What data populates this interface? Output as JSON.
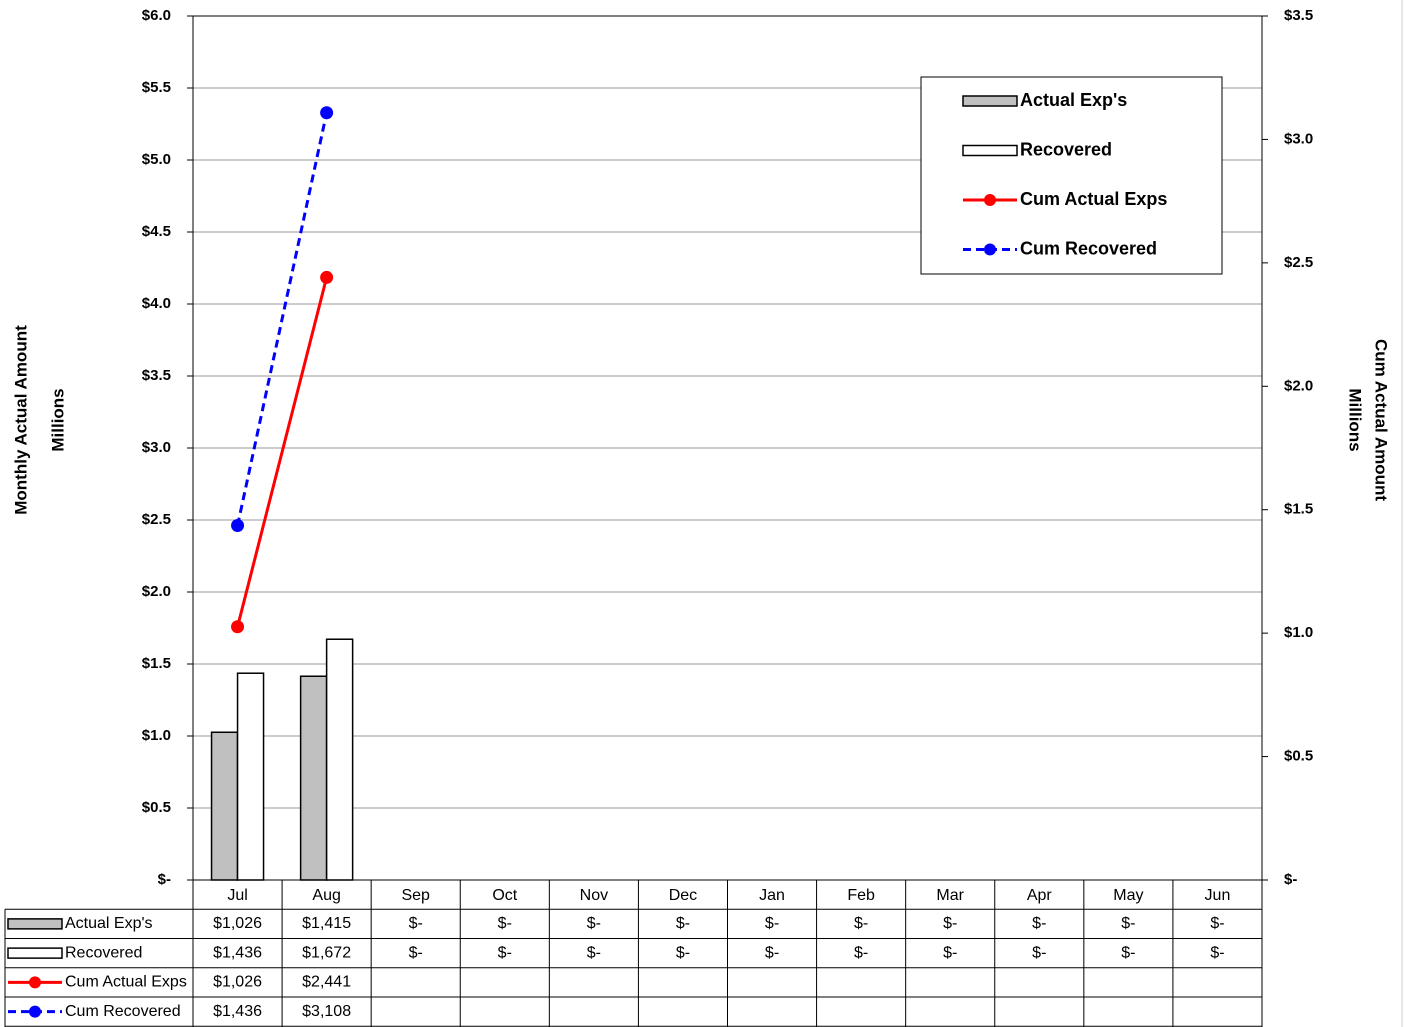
{
  "chart_data": {
    "type": "bar",
    "ylabel": [
      "Monthly Actual Amount",
      "Millions"
    ],
    "y2label": [
      "Cum Actual Amount",
      "Millions"
    ],
    "categories": [
      "Jul",
      "Aug",
      "Sep",
      "Oct",
      "Nov",
      "Dec",
      "Jan",
      "Feb",
      "Mar",
      "Apr",
      "May",
      "Jun"
    ],
    "ylim": [
      0,
      6
    ],
    "yticks": [
      {
        "value": 0,
        "label": "$-"
      },
      {
        "value": 0.5,
        "label": "$0.5"
      },
      {
        "value": 1,
        "label": "$1.0"
      },
      {
        "value": 1.5,
        "label": "$1.5"
      },
      {
        "value": 2,
        "label": "$2.0"
      },
      {
        "value": 2.5,
        "label": "$2.5"
      },
      {
        "value": 3,
        "label": "$3.0"
      },
      {
        "value": 3.5,
        "label": "$3.5"
      },
      {
        "value": 4,
        "label": "$4.0"
      },
      {
        "value": 4.5,
        "label": "$4.5"
      },
      {
        "value": 5,
        "label": "$5.0"
      },
      {
        "value": 5.5,
        "label": "$5.5"
      },
      {
        "value": 6,
        "label": "$6.0"
      }
    ],
    "y2lim": [
      0,
      3.5
    ],
    "y2ticks": [
      {
        "value": 0,
        "label": "$-"
      },
      {
        "value": 0.5,
        "label": "$0.5"
      },
      {
        "value": 1,
        "label": "$1.0"
      },
      {
        "value": 1.5,
        "label": "$1.5"
      },
      {
        "value": 2,
        "label": "$2.0"
      },
      {
        "value": 2.5,
        "label": "$2.5"
      },
      {
        "value": 3,
        "label": "$3.0"
      },
      {
        "value": 3.5,
        "label": "$3.5"
      }
    ],
    "grid": true,
    "legend": "top-right",
    "series": [
      {
        "name": "Actual Exp's",
        "style": "bar",
        "color": "#c0c0c0",
        "values": [
          1.026,
          1.415,
          0,
          0,
          0,
          0,
          0,
          0,
          0,
          0,
          0,
          0
        ],
        "value_labels": [
          "$1,026",
          "$1,415",
          "$-",
          "$-",
          "$-",
          "$-",
          "$-",
          "$-",
          "$-",
          "$-",
          "$-",
          "$-"
        ]
      },
      {
        "name": "Recovered",
        "style": "bar",
        "color": "#ffffff",
        "values": [
          1.436,
          1.672,
          0,
          0,
          0,
          0,
          0,
          0,
          0,
          0,
          0,
          0
        ],
        "value_labels": [
          "$1,436",
          "$1,672",
          "$-",
          "$-",
          "$-",
          "$-",
          "$-",
          "$-",
          "$-",
          "$-",
          "$-",
          "$-"
        ]
      },
      {
        "name": "Cum Actual Exps",
        "style": "line",
        "dashed": false,
        "axis": "y2",
        "color": "#ff0000",
        "values": [
          1.026,
          2.441,
          null,
          null,
          null,
          null,
          null,
          null,
          null,
          null,
          null,
          null
        ],
        "value_labels": [
          "$1,026",
          "$2,441",
          null,
          null,
          null,
          null,
          null,
          null,
          null,
          null,
          null,
          null
        ]
      },
      {
        "name": "Cum Recovered",
        "style": "line",
        "dashed": true,
        "axis": "y2",
        "color": "#0000ff",
        "values": [
          1.436,
          3.108,
          null,
          null,
          null,
          null,
          null,
          null,
          null,
          null,
          null,
          null
        ],
        "value_labels": [
          "$1,436",
          "$3,108",
          null,
          null,
          null,
          null,
          null,
          null,
          null,
          null,
          null,
          null
        ]
      }
    ]
  }
}
